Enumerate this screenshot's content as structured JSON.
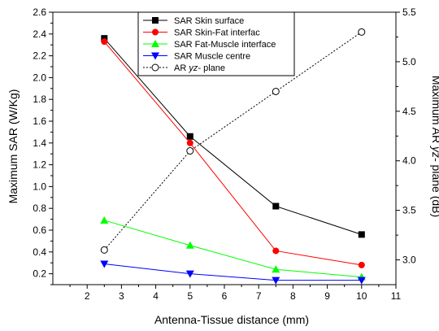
{
  "chart_data": {
    "type": "line",
    "title": "",
    "xlabel": "Antenna-Tissue distance (mm)",
    "ylabel": "Maximum SAR (W/Kg)",
    "y2label": "Maximum AR yz- plane  (dB)",
    "xlim": [
      1,
      11
    ],
    "ylim": [
      0.1,
      2.6
    ],
    "y2lim": [
      2.75,
      5.5
    ],
    "x_ticks": [
      "2",
      "3",
      "4",
      "5",
      "6",
      "7",
      "8",
      "9",
      "10",
      "11"
    ],
    "y_ticks": [
      "0.2",
      "0.4",
      "0.6",
      "0.8",
      "1.0",
      "1.2",
      "1.4",
      "1.6",
      "1.8",
      "2.0",
      "2.2",
      "2.4",
      "2.6"
    ],
    "y2_ticks": [
      "3.0",
      "3.5",
      "4.0",
      "4.5",
      "5.0",
      "5.5"
    ],
    "legend_position": "top-center",
    "grid": false,
    "x": [
      2.5,
      5,
      7.5,
      10
    ],
    "series": [
      {
        "name": "SAR Skin surface",
        "axis": "left",
        "values": [
          2.36,
          1.46,
          0.82,
          0.56
        ],
        "color": "#000000",
        "marker": "square-filled",
        "dash": "solid"
      },
      {
        "name": "SAR Skin-Fat interfac",
        "axis": "left",
        "values": [
          2.33,
          1.4,
          0.41,
          0.28
        ],
        "color": "#ff0000",
        "marker": "circle-filled",
        "dash": "solid"
      },
      {
        "name": "SAR Fat-Muscle interface",
        "axis": "left",
        "values": [
          0.69,
          0.46,
          0.24,
          0.17
        ],
        "color": "#00ff00",
        "marker": "triangle-up-filled",
        "dash": "solid"
      },
      {
        "name": "SAR Muscle centre",
        "axis": "left",
        "values": [
          0.29,
          0.2,
          0.14,
          0.14
        ],
        "color": "#0000ff",
        "marker": "triangle-down-filled",
        "dash": "solid"
      },
      {
        "name": "AR yz- plane",
        "axis": "right",
        "values": [
          3.1,
          4.1,
          4.7,
          5.3
        ],
        "color": "#000000",
        "marker": "circle-open",
        "dash": "dotted"
      }
    ]
  }
}
